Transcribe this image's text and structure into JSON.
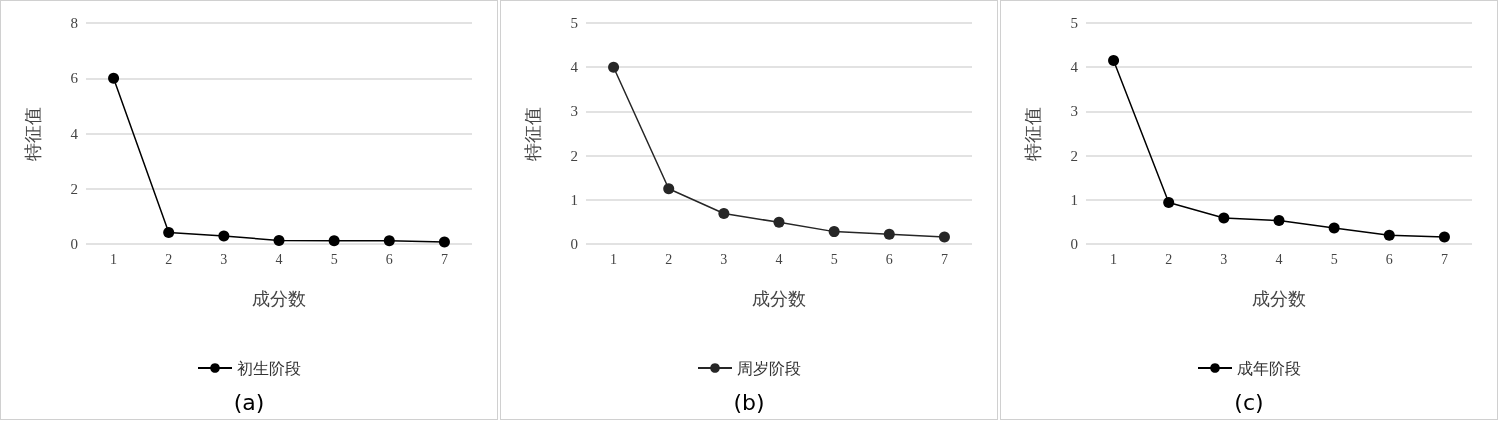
{
  "chart_data": [
    {
      "type": "line",
      "xlabel": "成分数",
      "ylabel": "特征值",
      "categories": [
        "1",
        "2",
        "3",
        "4",
        "5",
        "6",
        "7"
      ],
      "series": [
        {
          "name": "初生阶段",
          "color": "#000000",
          "values": [
            6.0,
            0.42,
            0.29,
            0.13,
            0.12,
            0.12,
            0.07
          ]
        }
      ],
      "ylim": [
        0,
        8
      ],
      "yticks": [
        0,
        2,
        4,
        6,
        8
      ],
      "grid": "y",
      "legend": "bottom",
      "marker": "circle",
      "line_style": "solid",
      "annotations": [
        "(a)"
      ]
    },
    {
      "type": "line",
      "xlabel": "成分数",
      "ylabel": "特征值",
      "categories": [
        "1",
        "2",
        "3",
        "4",
        "5",
        "6",
        "7"
      ],
      "series": [
        {
          "name": "周岁阶段",
          "color": "#262626",
          "values": [
            4.0,
            1.25,
            0.69,
            0.49,
            0.28,
            0.22,
            0.16
          ]
        }
      ],
      "ylim": [
        0,
        5
      ],
      "yticks": [
        0,
        1,
        2,
        3,
        4,
        5
      ],
      "grid": "y",
      "legend": "bottom",
      "marker": "circle",
      "line_style": "solid",
      "annotations": [
        "(b)"
      ]
    },
    {
      "type": "line",
      "xlabel": "成分数",
      "ylabel": "特征值",
      "categories": [
        "1",
        "2",
        "3",
        "4",
        "5",
        "6",
        "7"
      ],
      "series": [
        {
          "name": "成年阶段",
          "color": "#000000",
          "values": [
            4.15,
            0.94,
            0.59,
            0.53,
            0.36,
            0.2,
            0.16
          ]
        }
      ],
      "ylim": [
        0,
        5
      ],
      "yticks": [
        0,
        1,
        2,
        3,
        4,
        5
      ],
      "grid": "y",
      "legend": "bottom",
      "marker": "circle",
      "line_style": "solid",
      "annotations": [
        "(c)"
      ]
    }
  ]
}
